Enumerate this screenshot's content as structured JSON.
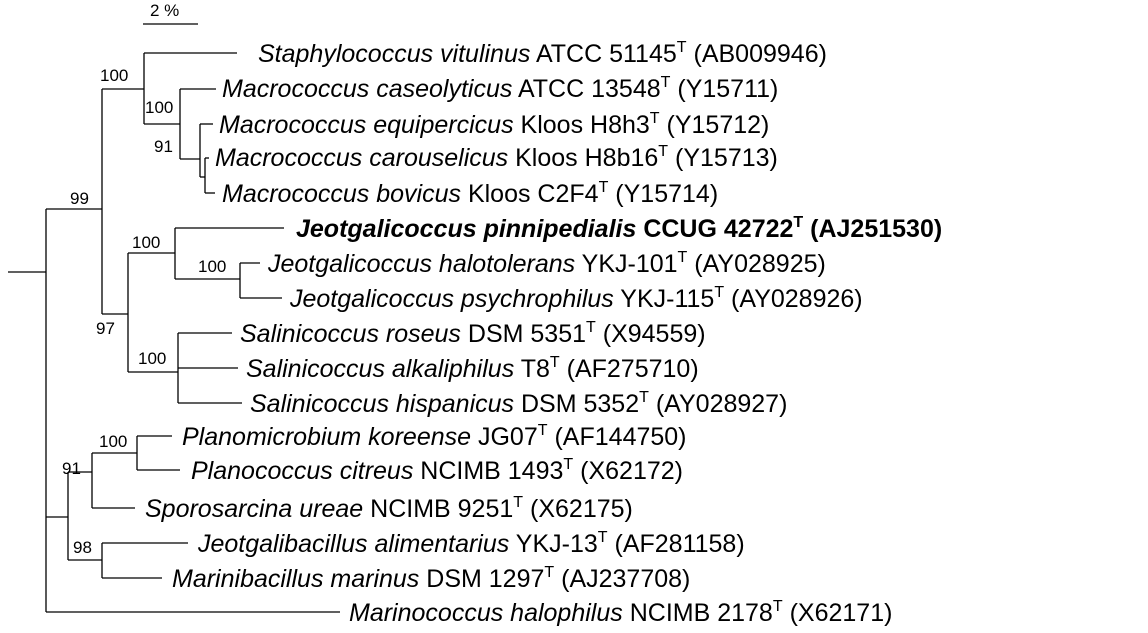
{
  "scale_bar": {
    "label": "2 %"
  },
  "taxa": [
    {
      "id": "staph",
      "species": "Staphylococcus vitulinus",
      "strain": "ATCC 51145",
      "type_mark": "T",
      "accession": "(AB009946)",
      "bold": false
    },
    {
      "id": "mcase",
      "species": "Macrococcus caseolyticus",
      "strain": "ATCC 13548",
      "type_mark": "T",
      "accession": "(Y15711)",
      "bold": false
    },
    {
      "id": "mequi",
      "species": "Macrococcus equipercicus",
      "strain": "Kloos H8h3",
      "type_mark": "T",
      "accession": "(Y15712)",
      "bold": false
    },
    {
      "id": "mcaro",
      "species": "Macrococcus carouselicus",
      "strain": "Kloos H8b16",
      "type_mark": "T",
      "accession": "(Y15713)",
      "bold": false
    },
    {
      "id": "mbovi",
      "species": "Macrococcus bovicus",
      "strain": "Kloos C2F4",
      "type_mark": "T",
      "accession": "(Y15714)",
      "bold": false
    },
    {
      "id": "jpinn",
      "species": "Jeotgalicoccus pinnipedialis",
      "strain": "CCUG 42722",
      "type_mark": "T",
      "accession": "(AJ251530)",
      "bold": true
    },
    {
      "id": "jhalo",
      "species": "Jeotgalicoccus halotolerans",
      "strain": "YKJ-101",
      "type_mark": "T",
      "accession": "(AY028925)",
      "bold": false
    },
    {
      "id": "jpsyc",
      "species": "Jeotgalicoccus psychrophilus",
      "strain": "YKJ-115",
      "type_mark": "T",
      "accession": "(AY028926)",
      "bold": false
    },
    {
      "id": "sros",
      "species": "Salinicoccus roseus",
      "strain": "DSM 5351",
      "type_mark": "T",
      "accession": "(X94559)",
      "bold": false
    },
    {
      "id": "salk",
      "species": "Salinicoccus alkaliphilus",
      "strain": "T8",
      "type_mark": "T",
      "accession": "(AF275710)",
      "bold": false
    },
    {
      "id": "shisp",
      "species": "Salinicoccus hispanicus",
      "strain": "DSM 5352",
      "type_mark": "T",
      "accession": "(AY028927)",
      "bold": false
    },
    {
      "id": "pkor",
      "species": "Planomicrobium koreense",
      "strain": "JG07",
      "type_mark": "T",
      "accession": "(AF144750)",
      "bold": false
    },
    {
      "id": "pcit",
      "species": "Planococcus citreus",
      "strain": "NCIMB 1493",
      "type_mark": "T",
      "accession": "(X62172)",
      "bold": false
    },
    {
      "id": "sure",
      "species": "Sporosarcina ureae",
      "strain": "NCIMB 9251",
      "type_mark": "T",
      "accession": "(X62175)",
      "bold": false
    },
    {
      "id": "jali",
      "species": "Jeotgalibacillus alimentarius",
      "strain": "YKJ-13",
      "type_mark": "T",
      "accession": "(AF281158)",
      "bold": false
    },
    {
      "id": "mmar",
      "species": "Marinibacillus marinus",
      "strain": "DSM 1297",
      "type_mark": "T",
      "accession": "(AJ237708)",
      "bold": false
    },
    {
      "id": "mhal",
      "species": "Marinococcus halophilus",
      "strain": "NCIMB 2178",
      "type_mark": "T",
      "accession": "(X62171)",
      "bold": false
    }
  ],
  "bootstrap": [
    {
      "id": "b_staph_mac",
      "value": "100"
    },
    {
      "id": "b_mac",
      "value": "100"
    },
    {
      "id": "b_mac_sub",
      "value": "91"
    },
    {
      "id": "b_big",
      "value": "99"
    },
    {
      "id": "b_jeot",
      "value": "100"
    },
    {
      "id": "b_jeot_sub",
      "value": "100"
    },
    {
      "id": "b_jeot_sal",
      "value": "97"
    },
    {
      "id": "b_sal",
      "value": "100"
    },
    {
      "id": "b_plano",
      "value": "100"
    },
    {
      "id": "b_plano_spor",
      "value": "91"
    },
    {
      "id": "b_jeotgb_mar",
      "value": "98"
    }
  ]
}
